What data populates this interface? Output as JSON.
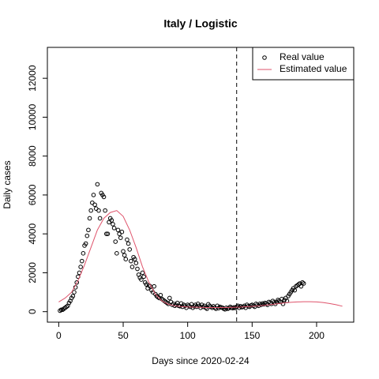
{
  "chart_data": {
    "type": "scatter",
    "title": "Italy / Logistic",
    "xlabel": "Days since 2020-02-24",
    "ylabel": "Daily cases",
    "xlim": [
      -8.8,
      228.8
    ],
    "ylim": [
      -540,
      13590
    ],
    "xticks": [
      0,
      50,
      100,
      150,
      200
    ],
    "yticks": [
      0,
      2000,
      4000,
      6000,
      8000,
      10000,
      12000
    ],
    "vline": 138,
    "legend": "top-right",
    "series": [
      {
        "name": "Real value",
        "type": "scatter",
        "color": "#000000",
        "x": [
          1,
          2,
          3,
          4,
          5,
          6,
          7,
          8,
          9,
          10,
          11,
          12,
          13,
          14,
          15,
          16,
          17,
          18,
          19,
          20,
          21,
          22,
          23,
          24,
          25,
          26,
          27,
          28,
          29,
          30,
          31,
          32,
          33,
          34,
          35,
          36,
          37,
          38,
          39,
          40,
          41,
          42,
          43,
          44,
          45,
          46,
          47,
          48,
          49,
          50,
          51,
          52,
          53,
          54,
          55,
          56,
          57,
          58,
          59,
          60,
          61,
          62,
          63,
          64,
          65,
          66,
          67,
          68,
          69,
          70,
          71,
          72,
          73,
          74,
          75,
          76,
          77,
          78,
          79,
          80,
          81,
          82,
          83,
          84,
          85,
          86,
          87,
          88,
          89,
          90,
          91,
          92,
          93,
          94,
          95,
          96,
          97,
          98,
          99,
          100,
          101,
          102,
          103,
          104,
          105,
          106,
          107,
          108,
          109,
          110,
          111,
          112,
          113,
          114,
          115,
          116,
          117,
          118,
          119,
          120,
          121,
          122,
          123,
          124,
          125,
          126,
          127,
          128,
          129,
          130,
          131,
          132,
          133,
          134,
          135,
          136,
          137,
          138,
          139,
          140,
          141,
          142,
          143,
          144,
          145,
          146,
          147,
          148,
          149,
          150,
          151,
          152,
          153,
          154,
          155,
          156,
          157,
          158,
          159,
          160,
          161,
          162,
          163,
          164,
          165,
          166,
          167,
          168,
          169,
          170,
          171,
          172,
          173,
          174,
          175,
          176,
          177,
          178,
          179,
          180,
          181,
          182,
          183,
          184,
          185,
          186,
          187,
          188,
          189,
          190
        ],
        "values": [
          50,
          100,
          100,
          150,
          200,
          250,
          300,
          450,
          550,
          700,
          800,
          1000,
          1250,
          1500,
          1800,
          2000,
          2300,
          2600,
          3000,
          3400,
          3500,
          3900,
          4200,
          4800,
          5200,
          5600,
          6000,
          5500,
          5300,
          6550,
          5200,
          4800,
          6100,
          6000,
          5900,
          5200,
          4000,
          4000,
          4600,
          4800,
          4700,
          4500,
          4300,
          3600,
          3000,
          4200,
          4000,
          3800,
          4100,
          3100,
          2900,
          2700,
          3700,
          3500,
          3200,
          2600,
          2300,
          2800,
          2700,
          2500,
          2200,
          1900,
          1750,
          1650,
          2000,
          1800,
          1500,
          1400,
          1200,
          1350,
          1300,
          1100,
          1000,
          1300,
          900,
          800,
          750,
          700,
          850,
          650,
          600,
          550,
          500,
          450,
          400,
          700,
          500,
          350,
          400,
          300,
          350,
          450,
          300,
          280,
          420,
          250,
          350,
          300,
          200,
          350,
          300,
          250,
          380,
          200,
          280,
          350,
          250,
          400,
          300,
          200,
          350,
          250,
          300,
          200,
          150,
          380,
          300,
          250,
          200,
          280,
          200,
          150,
          300,
          180,
          250,
          220,
          200,
          150,
          120,
          200,
          150,
          180,
          250,
          200,
          180,
          220,
          190,
          250,
          300,
          200,
          280,
          230,
          250,
          300,
          200,
          350,
          280,
          250,
          320,
          350,
          300,
          250,
          400,
          350,
          300,
          400,
          350,
          420,
          380,
          450,
          400,
          350,
          500,
          450,
          400,
          550,
          480,
          400,
          500,
          600,
          550,
          500,
          650,
          400,
          600,
          700,
          550,
          800,
          900,
          1000,
          1100,
          1200,
          1100,
          1300,
          1350,
          1400,
          1450,
          1300,
          1500,
          1450
        ]
      },
      {
        "name": "Estimated value",
        "type": "line",
        "color": "#df536b",
        "x": [
          0,
          5,
          10,
          15,
          20,
          25,
          30,
          35,
          40,
          45,
          50,
          55,
          60,
          65,
          70,
          75,
          80,
          85,
          90,
          95,
          100,
          105,
          110,
          115,
          120,
          125,
          130,
          135,
          140,
          145,
          150,
          155,
          160,
          165,
          170,
          175,
          180,
          185,
          190,
          195,
          200,
          205,
          210,
          215,
          220
        ],
        "values": [
          500,
          700,
          1000,
          1600,
          2400,
          3300,
          4200,
          4800,
          5100,
          5200,
          4900,
          4200,
          3300,
          2300,
          1500,
          900,
          550,
          380,
          300,
          260,
          240,
          230,
          220,
          210,
          210,
          210,
          210,
          220,
          230,
          250,
          270,
          300,
          330,
          370,
          410,
          450,
          480,
          500,
          510,
          510,
          500,
          470,
          420,
          360,
          280
        ]
      }
    ]
  }
}
